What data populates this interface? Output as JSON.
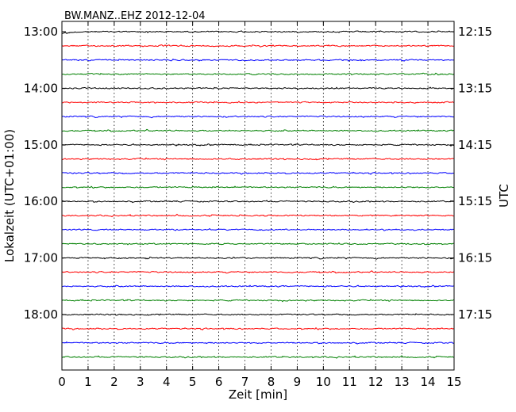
{
  "chart_data": {
    "type": "line",
    "title": "BW.MANZ..EHZ 2012-12-04",
    "xlabel": "Zeit  [min]",
    "ylabel_left": "Lokalzeit (UTC+01:00)",
    "ylabel_right": "UTC",
    "xlim": [
      0,
      15
    ],
    "x_ticks": [
      "0",
      "1",
      "2",
      "3",
      "4",
      "5",
      "6",
      "7",
      "8",
      "9",
      "10",
      "11",
      "12",
      "13",
      "14",
      "15"
    ],
    "left_tick_labels": [
      "13:00",
      "14:00",
      "15:00",
      "16:00",
      "17:00",
      "18:00"
    ],
    "right_tick_labels": [
      "12:15",
      "13:15",
      "14:15",
      "15:15",
      "16:15",
      "17:15"
    ],
    "trace_interval_min": 15,
    "trace_count": 24,
    "trace_colors": [
      "#000000",
      "#ff0000",
      "#0000ff",
      "#008000"
    ],
    "grid": "vertical dotted at each minute"
  }
}
